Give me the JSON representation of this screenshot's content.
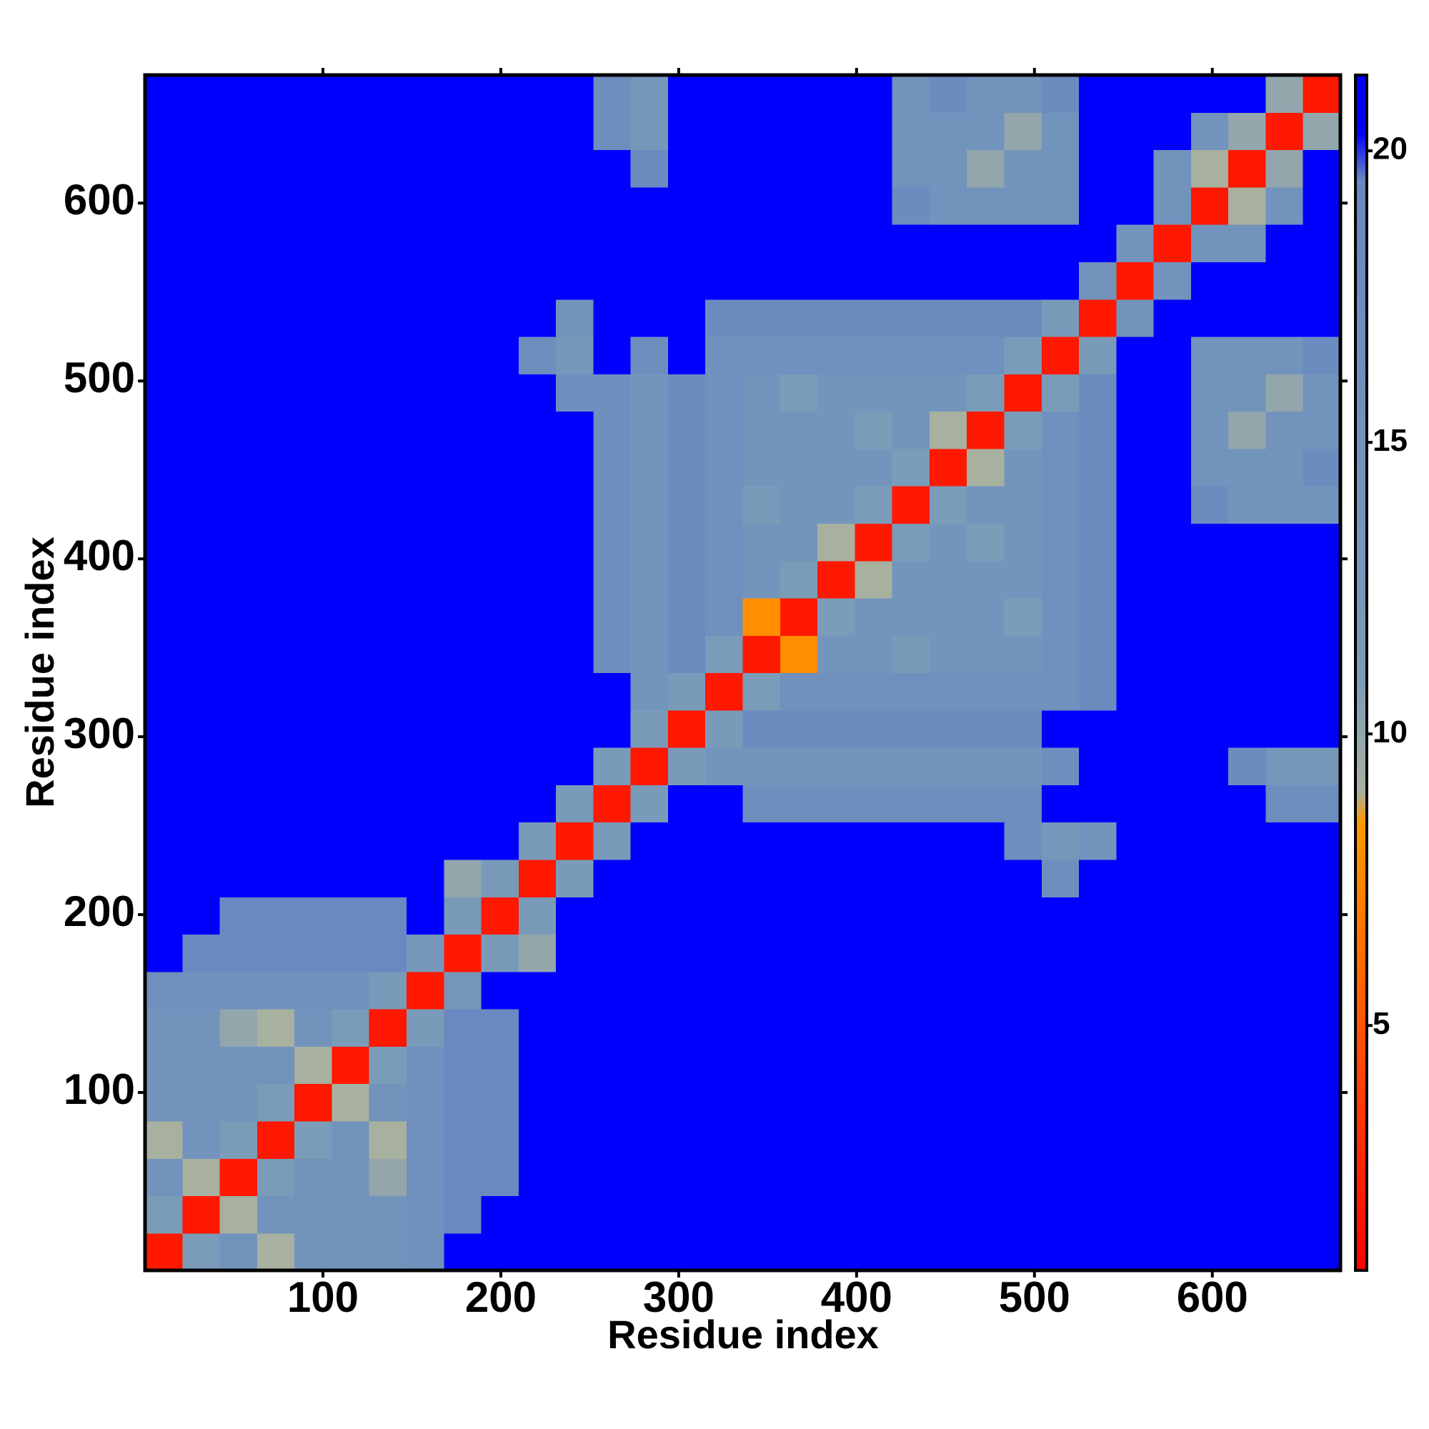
{
  "chart_data": {
    "type": "heatmap",
    "xlabel": "Residue index",
    "ylabel": "Residue index",
    "xlim": [
      0,
      672
    ],
    "ylim": [
      0,
      672
    ],
    "xticks": [
      100,
      200,
      300,
      400,
      500,
      600
    ],
    "yticks": [
      100,
      200,
      300,
      400,
      500,
      600
    ],
    "x_bins": [
      0,
      21,
      42,
      63,
      84,
      105,
      126,
      147,
      168,
      189,
      210,
      231,
      252,
      273,
      294,
      315,
      336,
      357,
      378,
      399,
      420,
      441,
      462,
      483,
      504,
      525,
      546,
      567,
      588,
      609,
      630,
      651,
      672
    ],
    "y_bins": [
      0,
      21,
      42,
      63,
      84,
      105,
      126,
      147,
      168,
      189,
      210,
      231,
      252,
      273,
      294,
      315,
      336,
      357,
      378,
      399,
      420,
      441,
      462,
      483,
      504,
      525,
      546,
      567,
      588,
      609,
      630,
      651,
      672
    ],
    "zlim": [
      0.8,
      21.3
    ],
    "zticks": [
      5,
      10,
      15,
      20
    ],
    "colorscale": [
      [
        0.8,
        "#ff0000"
      ],
      [
        5,
        "#ff5500"
      ],
      [
        8.5,
        "#ff9900"
      ],
      [
        9,
        "#a8b0a0"
      ],
      [
        11,
        "#7b9cb8"
      ],
      [
        19.5,
        "#6888c0"
      ],
      [
        20.3,
        "#0000ff"
      ],
      [
        21.3,
        "#0000ff"
      ]
    ],
    "values": [
      [
        2,
        11,
        15,
        9,
        15,
        15,
        15,
        16,
        21,
        21,
        21,
        21,
        21,
        21,
        21,
        21,
        21,
        21,
        21,
        21,
        21,
        21,
        21,
        21,
        21,
        21,
        21,
        21,
        21,
        21,
        21,
        21
      ],
      [
        11,
        2,
        9,
        15,
        15,
        15,
        15,
        16,
        19,
        21,
        21,
        21,
        21,
        21,
        21,
        21,
        21,
        21,
        21,
        21,
        21,
        21,
        21,
        21,
        21,
        21,
        21,
        21,
        21,
        21,
        21,
        21
      ],
      [
        15,
        9,
        2,
        11,
        15,
        15,
        10,
        16,
        19,
        19,
        21,
        21,
        21,
        21,
        21,
        21,
        21,
        21,
        21,
        21,
        21,
        21,
        21,
        21,
        21,
        21,
        21,
        21,
        21,
        21,
        21,
        21
      ],
      [
        9,
        15,
        11,
        2,
        11,
        15,
        9,
        16,
        19,
        19,
        21,
        21,
        21,
        21,
        21,
        21,
        21,
        21,
        21,
        21,
        21,
        21,
        21,
        21,
        21,
        21,
        21,
        21,
        21,
        21,
        21,
        21
      ],
      [
        15,
        15,
        15,
        11,
        2,
        9,
        15,
        16,
        19,
        19,
        21,
        21,
        21,
        21,
        21,
        21,
        21,
        21,
        21,
        21,
        21,
        21,
        21,
        21,
        21,
        21,
        21,
        21,
        21,
        21,
        21,
        21
      ],
      [
        15,
        15,
        15,
        15,
        9,
        2,
        11,
        16,
        19,
        19,
        21,
        21,
        21,
        21,
        21,
        21,
        21,
        21,
        21,
        21,
        21,
        21,
        21,
        21,
        21,
        21,
        21,
        21,
        21,
        21,
        21,
        21
      ],
      [
        15,
        15,
        10,
        9,
        15,
        11,
        2,
        12,
        19,
        19,
        21,
        21,
        21,
        21,
        21,
        21,
        21,
        21,
        21,
        21,
        21,
        21,
        21,
        21,
        21,
        21,
        21,
        21,
        21,
        21,
        21,
        21
      ],
      [
        16,
        16,
        16,
        16,
        16,
        16,
        12,
        2,
        13,
        21,
        21,
        21,
        21,
        21,
        21,
        21,
        21,
        21,
        21,
        21,
        21,
        21,
        21,
        21,
        21,
        21,
        21,
        21,
        21,
        21,
        21,
        21
      ],
      [
        21,
        19,
        19,
        19,
        19,
        19,
        19,
        13,
        2,
        12,
        10,
        21,
        21,
        21,
        21,
        21,
        21,
        21,
        21,
        21,
        21,
        21,
        21,
        21,
        21,
        21,
        21,
        21,
        21,
        21,
        21,
        21
      ],
      [
        21,
        21,
        19,
        19,
        19,
        19,
        19,
        21,
        12,
        2,
        12,
        21,
        21,
        21,
        21,
        21,
        21,
        21,
        21,
        21,
        21,
        21,
        21,
        21,
        21,
        21,
        21,
        21,
        21,
        21,
        21,
        21
      ],
      [
        21,
        21,
        21,
        21,
        21,
        21,
        21,
        21,
        10,
        12,
        2,
        12,
        21,
        21,
        21,
        21,
        21,
        21,
        21,
        21,
        21,
        21,
        21,
        21,
        17,
        21,
        21,
        21,
        21,
        21,
        21,
        21
      ],
      [
        21,
        21,
        21,
        21,
        21,
        21,
        21,
        21,
        21,
        21,
        12,
        2,
        12,
        21,
        21,
        21,
        21,
        21,
        21,
        21,
        21,
        21,
        21,
        17,
        13,
        15,
        21,
        21,
        21,
        21,
        21,
        21
      ],
      [
        21,
        21,
        21,
        21,
        21,
        21,
        21,
        21,
        21,
        21,
        21,
        12,
        2,
        12,
        21,
        21,
        17,
        17,
        17,
        17,
        17,
        17,
        17,
        17,
        21,
        21,
        21,
        21,
        21,
        21,
        17,
        17
      ],
      [
        21,
        21,
        21,
        21,
        21,
        21,
        21,
        21,
        21,
        21,
        21,
        21,
        12,
        2,
        12,
        14,
        14,
        14,
        14,
        14,
        14,
        14,
        14,
        14,
        17,
        21,
        21,
        21,
        21,
        18,
        13,
        13
      ],
      [
        21,
        21,
        21,
        21,
        21,
        21,
        21,
        21,
        21,
        21,
        21,
        21,
        21,
        12,
        2,
        12,
        18,
        18,
        18,
        18,
        18,
        18,
        18,
        18,
        21,
        21,
        21,
        21,
        21,
        21,
        21,
        21
      ],
      [
        21,
        21,
        21,
        21,
        21,
        21,
        21,
        21,
        21,
        21,
        21,
        21,
        21,
        14,
        12,
        2,
        11,
        16,
        16,
        16,
        16,
        16,
        16,
        16,
        16,
        18,
        21,
        21,
        21,
        21,
        21,
        21
      ],
      [
        21,
        21,
        21,
        21,
        21,
        21,
        21,
        21,
        21,
        21,
        21,
        21,
        17,
        14,
        18,
        11,
        2,
        8,
        14,
        14,
        12,
        14,
        14,
        14,
        16,
        18,
        21,
        21,
        21,
        21,
        21,
        21
      ],
      [
        21,
        21,
        21,
        21,
        21,
        21,
        21,
        21,
        21,
        21,
        21,
        21,
        17,
        14,
        18,
        16,
        8,
        2,
        11,
        14,
        14,
        14,
        14,
        11,
        16,
        18,
        21,
        21,
        21,
        21,
        21,
        21
      ],
      [
        21,
        21,
        21,
        21,
        21,
        21,
        21,
        21,
        21,
        21,
        21,
        21,
        17,
        14,
        18,
        16,
        14,
        11,
        2,
        9,
        14,
        14,
        14,
        14,
        16,
        18,
        21,
        21,
        21,
        21,
        21,
        21
      ],
      [
        21,
        21,
        21,
        21,
        21,
        21,
        21,
        21,
        21,
        21,
        21,
        21,
        17,
        14,
        18,
        16,
        14,
        14,
        9,
        2,
        11,
        14,
        11,
        14,
        16,
        18,
        21,
        21,
        21,
        21,
        21,
        21
      ],
      [
        21,
        21,
        21,
        21,
        21,
        21,
        21,
        21,
        21,
        21,
        21,
        21,
        17,
        14,
        18,
        16,
        12,
        14,
        14,
        11,
        2,
        11,
        14,
        14,
        16,
        18,
        21,
        21,
        18,
        15,
        15,
        15
      ],
      [
        21,
        21,
        21,
        21,
        21,
        21,
        21,
        21,
        21,
        21,
        21,
        21,
        17,
        14,
        18,
        16,
        14,
        14,
        14,
        14,
        11,
        2,
        9,
        14,
        16,
        18,
        21,
        21,
        15,
        15,
        15,
        18
      ],
      [
        21,
        21,
        21,
        21,
        21,
        21,
        21,
        21,
        21,
        21,
        21,
        21,
        17,
        14,
        18,
        16,
        14,
        14,
        14,
        11,
        14,
        9,
        2,
        11,
        16,
        18,
        21,
        21,
        15,
        10,
        15,
        15
      ],
      [
        21,
        21,
        21,
        21,
        21,
        21,
        21,
        21,
        21,
        21,
        21,
        17,
        17,
        14,
        18,
        16,
        14,
        11,
        14,
        14,
        14,
        14,
        11,
        2,
        11,
        18,
        21,
        21,
        15,
        15,
        10,
        15
      ],
      [
        21,
        21,
        21,
        21,
        21,
        21,
        21,
        21,
        21,
        21,
        17,
        13,
        21,
        17,
        21,
        16,
        16,
        16,
        16,
        16,
        16,
        16,
        16,
        11,
        2,
        12,
        21,
        21,
        15,
        15,
        15,
        18
      ],
      [
        21,
        21,
        21,
        21,
        21,
        21,
        21,
        21,
        21,
        21,
        21,
        15,
        21,
        21,
        21,
        18,
        18,
        18,
        18,
        18,
        18,
        18,
        18,
        18,
        12,
        2,
        15,
        21,
        21,
        21,
        21,
        21
      ],
      [
        21,
        21,
        21,
        21,
        21,
        21,
        21,
        21,
        21,
        21,
        21,
        21,
        21,
        21,
        21,
        21,
        21,
        21,
        21,
        21,
        21,
        21,
        21,
        21,
        21,
        15,
        2,
        15,
        21,
        21,
        21,
        21
      ],
      [
        21,
        21,
        21,
        21,
        21,
        21,
        21,
        21,
        21,
        21,
        21,
        21,
        21,
        21,
        21,
        21,
        21,
        21,
        21,
        21,
        21,
        21,
        21,
        21,
        21,
        21,
        15,
        2,
        15,
        15,
        21,
        21
      ],
      [
        21,
        21,
        21,
        21,
        21,
        21,
        21,
        21,
        21,
        21,
        21,
        21,
        21,
        21,
        21,
        21,
        21,
        21,
        21,
        21,
        18,
        15,
        15,
        15,
        15,
        21,
        21,
        15,
        2,
        9,
        15,
        21
      ],
      [
        21,
        21,
        21,
        21,
        21,
        21,
        21,
        21,
        21,
        21,
        21,
        21,
        21,
        18,
        21,
        21,
        21,
        21,
        21,
        21,
        15,
        15,
        10,
        15,
        15,
        21,
        21,
        15,
        9,
        2,
        10,
        21
      ],
      [
        21,
        21,
        21,
        21,
        21,
        21,
        21,
        21,
        21,
        21,
        21,
        21,
        17,
        13,
        21,
        21,
        21,
        21,
        21,
        21,
        15,
        15,
        15,
        10,
        15,
        21,
        21,
        21,
        15,
        10,
        2,
        10
      ],
      [
        21,
        21,
        21,
        21,
        21,
        21,
        21,
        21,
        21,
        21,
        21,
        21,
        17,
        13,
        21,
        21,
        21,
        21,
        21,
        21,
        15,
        18,
        15,
        15,
        18,
        21,
        21,
        21,
        21,
        21,
        10,
        2
      ]
    ]
  }
}
